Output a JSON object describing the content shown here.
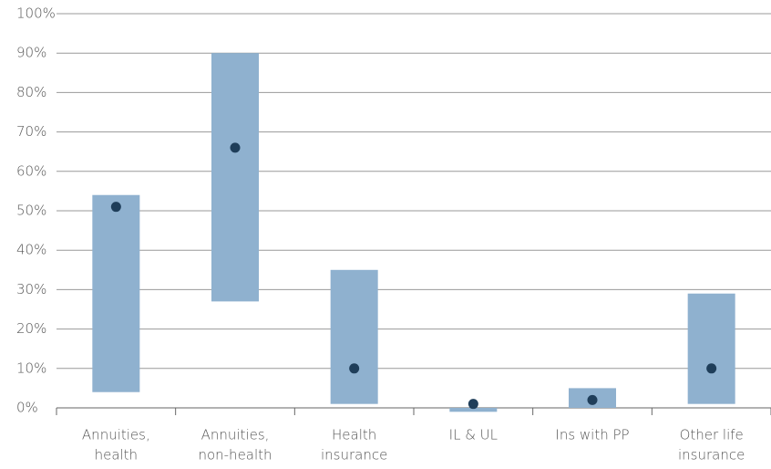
{
  "chart_data": {
    "type": "range",
    "categories": [
      [
        "Annuities,",
        "health"
      ],
      [
        "Annuities,",
        "non-health"
      ],
      [
        "Health",
        "insurance"
      ],
      [
        "IL & UL"
      ],
      [
        "Ins with PP"
      ],
      [
        "Other life",
        "insurance"
      ]
    ],
    "ranges": [
      [
        4,
        54
      ],
      [
        27,
        90
      ],
      [
        1,
        35
      ],
      [
        -1,
        0
      ],
      [
        0,
        5
      ],
      [
        1,
        29
      ]
    ],
    "values": [
      51,
      66,
      10,
      1,
      2,
      10
    ],
    "range_color": "#8fb1cf",
    "point_color": "#1f3e5a",
    "ylim": [
      0,
      100
    ],
    "yticks": [
      {
        "value": 0,
        "label": "0%"
      },
      {
        "value": 10,
        "label": "10%"
      },
      {
        "value": 20,
        "label": "20%"
      },
      {
        "value": 30,
        "label": "30%"
      },
      {
        "value": 40,
        "label": "40%"
      },
      {
        "value": 50,
        "label": "50%"
      },
      {
        "value": 60,
        "label": "60%"
      },
      {
        "value": 70,
        "label": "70%"
      },
      {
        "value": 80,
        "label": "80%"
      },
      {
        "value": 90,
        "label": "90%"
      },
      {
        "value": 100,
        "label": "100%"
      }
    ],
    "grid": true
  }
}
